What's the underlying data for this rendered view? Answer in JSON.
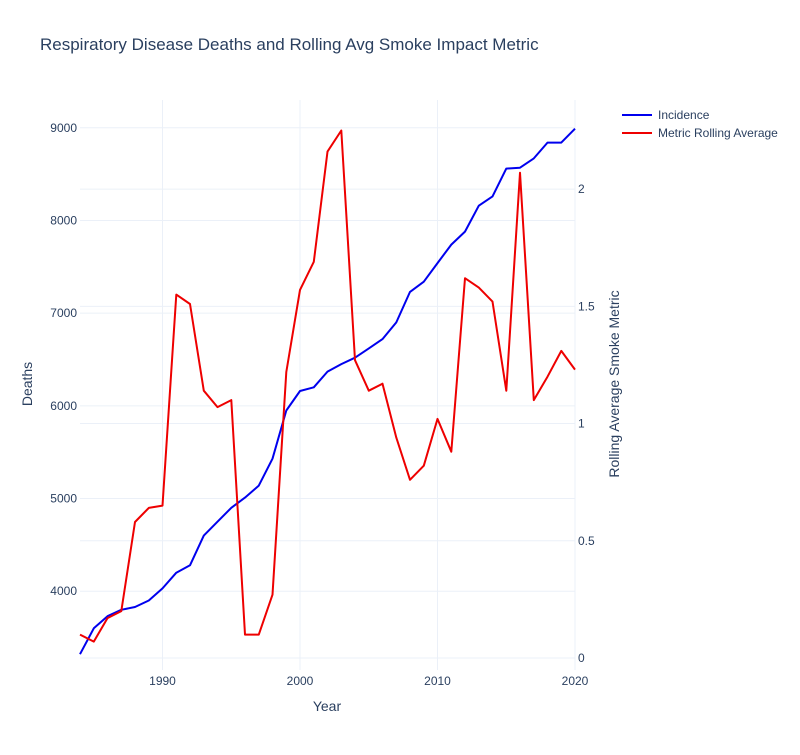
{
  "chart_data": {
    "type": "line",
    "title": "Respiratory Disease Deaths and Rolling Avg Smoke Impact Metric",
    "xlabel": "Year",
    "ylabel": "Deaths",
    "y2label": "Rolling Average Smoke Metric",
    "xlim": [
      1984,
      2020
    ],
    "ylim": [
      3150,
      9300
    ],
    "y2lim": [
      0,
      2.38
    ],
    "x_ticks": [
      1990,
      2000,
      2010,
      2020
    ],
    "y_ticks": [
      4000,
      5000,
      6000,
      7000,
      8000,
      9000
    ],
    "y2_ticks": [
      0,
      0.5,
      1,
      1.5,
      2
    ],
    "x_tick_labels": [
      "1990",
      "2000",
      "2010",
      "2020"
    ],
    "y_tick_labels": [
      "4000",
      "5000",
      "6000",
      "7000",
      "8000",
      "9000"
    ],
    "y2_tick_labels": [
      "0",
      "0.5",
      "1",
      "1.5",
      "2"
    ],
    "grid": true,
    "legend_position": "top-right",
    "x": [
      1984,
      1985,
      1986,
      1987,
      1988,
      1989,
      1990,
      1991,
      1992,
      1993,
      1994,
      1995,
      1996,
      1997,
      1998,
      1999,
      2000,
      2001,
      2002,
      2003,
      2004,
      2005,
      2006,
      2007,
      2008,
      2009,
      2010,
      2011,
      2012,
      2013,
      2014,
      2015,
      2016,
      2017,
      2018,
      2019,
      2020
    ],
    "series": [
      {
        "name": "Incidence",
        "axis": "y",
        "color": "#0000ee",
        "values": [
          3320,
          3600,
          3730,
          3800,
          3830,
          3900,
          4030,
          4200,
          4280,
          4600,
          4750,
          4900,
          5010,
          5140,
          5430,
          5950,
          6160,
          6200,
          6370,
          6450,
          6520,
          6620,
          6720,
          6900,
          7230,
          7340,
          7540,
          7740,
          7880,
          8160,
          8260,
          8560,
          8570,
          8670,
          8840,
          8840,
          8990
        ]
      },
      {
        "name": "Metric Rolling Average",
        "axis": "y2",
        "color": "#ee0000",
        "values": [
          0.1,
          0.07,
          0.17,
          0.2,
          0.58,
          0.64,
          0.65,
          1.55,
          1.51,
          1.14,
          1.07,
          1.1,
          0.1,
          0.1,
          0.27,
          1.22,
          1.57,
          1.69,
          2.16,
          2.25,
          1.27,
          1.14,
          1.17,
          0.94,
          0.76,
          0.82,
          1.02,
          0.88,
          1.62,
          1.58,
          1.52,
          1.14,
          2.07,
          1.1,
          1.2,
          1.31,
          1.23
        ]
      }
    ]
  }
}
